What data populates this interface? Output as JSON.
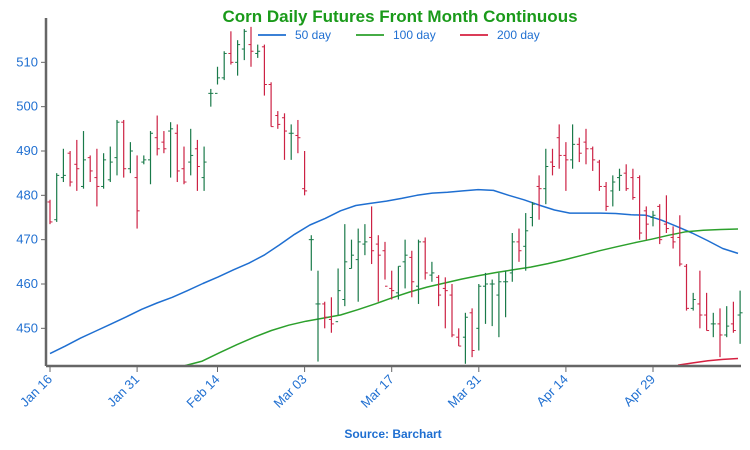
{
  "chart_data": {
    "type": "line",
    "title": "Corn Daily Futures Front Month Continuous",
    "source": "Source: Barchart",
    "xlabel": "",
    "ylabel": "",
    "x_tick_labels": [
      "Jan 16",
      "Jan 31",
      "Feb 14",
      "Mar 03",
      "Mar 17",
      "Mar 31",
      "Apr 14",
      "Apr 29"
    ],
    "y_ticks": [
      450,
      460,
      470,
      480,
      490,
      500,
      510
    ],
    "ylim": [
      441.5,
      520
    ],
    "grid": false,
    "legend_position": "top",
    "series": [
      {
        "name": "50 day",
        "color": "#1f6fd1",
        "values": [
          444.3,
          446.0,
          447.8,
          449.4,
          451.0,
          452.6,
          454.3,
          455.7,
          457.0,
          458.5,
          460.1,
          461.6,
          463.2,
          464.7,
          466.5,
          468.8,
          471.2,
          473.3,
          474.8,
          476.5,
          477.7,
          478.2,
          478.7,
          479.3,
          480.0,
          480.5,
          480.7,
          481.0,
          481.3,
          481.1,
          480.0,
          479.0,
          477.8,
          476.7,
          476.0,
          476.0,
          476.0,
          475.9,
          475.6,
          475.5,
          474.4,
          473.0,
          471.5,
          469.8,
          468.0,
          466.9
        ]
      },
      {
        "name": "100 day",
        "color": "#2ca02c",
        "values": [
          441.6,
          442.6,
          444.5,
          446.3,
          448.0,
          449.5,
          450.7,
          451.6,
          452.3,
          453.0,
          454.2,
          455.5,
          456.9,
          458.2,
          459.3,
          460.2,
          461.1,
          461.9,
          462.6,
          463.2,
          463.8,
          464.6,
          465.5,
          466.5,
          467.5,
          468.4,
          469.3,
          470.1,
          471.0,
          471.8,
          472.1,
          472.3,
          472.4
        ]
      },
      {
        "name": "200 day",
        "color": "#d62040",
        "values": [
          441.7,
          442.2,
          442.7,
          443.0,
          443.2
        ]
      }
    ],
    "ohlc": {
      "up_color": "#1a7a4a",
      "down_color": "#cc2244",
      "bars": [
        [
          478.5,
          479.0,
          473.5,
          474.0
        ],
        [
          474.5,
          485.0,
          474.0,
          484.5
        ],
        [
          484.0,
          490.5,
          483.0,
          484.5
        ],
        [
          489.5,
          490.0,
          482.0,
          483.0
        ],
        [
          487.0,
          492.5,
          481.0,
          486.0
        ],
        [
          482.0,
          494.5,
          481.5,
          488.0
        ],
        [
          488.5,
          489.0,
          483.0,
          485.5
        ],
        [
          484.0,
          490.5,
          477.5,
          482.0
        ],
        [
          482.0,
          489.5,
          481.5,
          488.0
        ],
        [
          483.5,
          491.0,
          483.0,
          487.5
        ],
        [
          488.5,
          497.0,
          484.5,
          496.5
        ],
        [
          496.5,
          497.0,
          484.0,
          486.0
        ],
        [
          486.0,
          492.0,
          485.0,
          490.0
        ],
        [
          484.0,
          489.0,
          472.5,
          476.5
        ],
        [
          487.5,
          489.0,
          487.0,
          488.0
        ],
        [
          488.0,
          494.5,
          482.5,
          494.0
        ],
        [
          493.0,
          498.0,
          489.0,
          490.5
        ],
        [
          492.0,
          494.5,
          489.5,
          490.5
        ],
        [
          494.5,
          496.5,
          484.0,
          495.0
        ],
        [
          494.0,
          496.0,
          483.0,
          485.5
        ],
        [
          486.0,
          491.0,
          482.5,
          483.0
        ],
        [
          487.5,
          495.0,
          484.5,
          489.0
        ],
        [
          490.5,
          492.5,
          481.0,
          486.5
        ],
        [
          484.0,
          491.0,
          481.0,
          487.5
        ],
        [
          503.0,
          504.0,
          500.0,
          503.0
        ],
        [
          503.0,
          509.0,
          505.0,
          506.5
        ],
        [
          506.5,
          512.5,
          506.0,
          512.0
        ],
        [
          512.0,
          517.0,
          509.5,
          510.0
        ],
        [
          510.0,
          515.0,
          507.0,
          514.0
        ],
        [
          513.0,
          517.5,
          510.5,
          517.0
        ],
        [
          514.0,
          518.0,
          509.0,
          512.5
        ],
        [
          512.0,
          514.0,
          511.0,
          512.5
        ],
        [
          513.5,
          514.0,
          502.5,
          505.0
        ],
        [
          505.0,
          505.5,
          495.5,
          495.5
        ],
        [
          498.0,
          499.0,
          495.0,
          496.0
        ],
        [
          497.5,
          498.5,
          488.0,
          494.5
        ],
        [
          494.0,
          496.0,
          488.0,
          494.0
        ],
        [
          493.5,
          497.0,
          489.5,
          493.0
        ],
        [
          481.5,
          490.0,
          480.0,
          481.0
        ],
        [
          470.0,
          471.0,
          463.0,
          470.0
        ],
        [
          455.5,
          463.0,
          442.5,
          455.5
        ],
        [
          455.5,
          456.0,
          450.0,
          452.5
        ],
        [
          452.0,
          457.0,
          449.0,
          451.0
        ],
        [
          451.5,
          463.5,
          453.0,
          458.5
        ],
        [
          456.5,
          473.5,
          455.0,
          465.0
        ],
        [
          463.5,
          470.0,
          463.5,
          466.5
        ],
        [
          465.5,
          472.5,
          456.0,
          469.5
        ],
        [
          469.0,
          473.5,
          466.5,
          469.5
        ],
        [
          470.5,
          477.5,
          464.5,
          467.5
        ],
        [
          469.0,
          471.0,
          456.0,
          466.5
        ],
        [
          467.5,
          469.5,
          461.0,
          459.5
        ],
        [
          459.0,
          463.0,
          456.5,
          458.5
        ],
        [
          458.0,
          464.0,
          456.5,
          464.0
        ],
        [
          465.0,
          470.0,
          459.0,
          466.5
        ],
        [
          466.0,
          467.5,
          457.0,
          460.5
        ],
        [
          459.5,
          470.0,
          455.5,
          469.5
        ],
        [
          469.5,
          470.5,
          461.0,
          462.5
        ],
        [
          462.0,
          465.0,
          460.5,
          462.5
        ],
        [
          461.5,
          462.0,
          455.0,
          457.5
        ],
        [
          459.0,
          461.5,
          450.0,
          458.5
        ],
        [
          457.5,
          460.0,
          448.0,
          448.5
        ],
        [
          448.0,
          450.0,
          446.0,
          446.0
        ],
        [
          448.0,
          453.5,
          442.0,
          452.5
        ],
        [
          453.5,
          454.5,
          443.5,
          445.0
        ],
        [
          450.0,
          460.0,
          445.0,
          459.5
        ],
        [
          459.5,
          462.5,
          451.0,
          460.0
        ],
        [
          460.0,
          461.0,
          450.5,
          460.0
        ],
        [
          457.5,
          462.5,
          448.0,
          460.5
        ],
        [
          460.5,
          463.0,
          452.5,
          460.5
        ],
        [
          462.5,
          471.5,
          460.5,
          469.5
        ],
        [
          469.5,
          472.5,
          465.0,
          467.5
        ],
        [
          468.5,
          476.0,
          463.0,
          472.0
        ],
        [
          475.0,
          478.5,
          473.0,
          478.0
        ],
        [
          482.0,
          484.5,
          474.5,
          481.5
        ],
        [
          481.5,
          490.5,
          478.0,
          486.5
        ],
        [
          487.5,
          490.5,
          484.5,
          486.5
        ],
        [
          493.0,
          496.0,
          486.0,
          489.0
        ],
        [
          489.0,
          492.0,
          481.0,
          488.0
        ],
        [
          488.0,
          496.0,
          486.0,
          491.5
        ],
        [
          491.5,
          493.0,
          487.5,
          489.5
        ],
        [
          492.0,
          495.0,
          487.0,
          490.5
        ],
        [
          490.5,
          491.0,
          485.5,
          488.0
        ],
        [
          487.5,
          488.0,
          481.0,
          482.0
        ],
        [
          482.0,
          483.0,
          476.5,
          477.5
        ],
        [
          481.0,
          484.5,
          477.5,
          483.0
        ],
        [
          484.0,
          486.0,
          481.0,
          484.5
        ],
        [
          485.0,
          487.0,
          481.0,
          481.5
        ],
        [
          484.0,
          486.0,
          479.0,
          479.5
        ],
        [
          484.0,
          484.5,
          470.0,
          471.5
        ],
        [
          476.5,
          477.5,
          470.0,
          473.5
        ],
        [
          475.0,
          476.5,
          473.0,
          475.5
        ],
        [
          477.5,
          478.0,
          469.0,
          470.0
        ],
        [
          473.5,
          480.0,
          471.5,
          472.5
        ],
        [
          470.5,
          473.0,
          468.0,
          469.5
        ],
        [
          470.5,
          475.5,
          464.0,
          464.5
        ],
        [
          464.0,
          464.5,
          454.0,
          454.5
        ],
        [
          454.5,
          458.0,
          454.0,
          456.5
        ],
        [
          455.5,
          463.0,
          450.0,
          453.0
        ],
        [
          453.0,
          458.0,
          449.5,
          449.5
        ],
        [
          451.0,
          453.5,
          448.0,
          451.0
        ],
        [
          451.0,
          454.5,
          443.5,
          448.5
        ],
        [
          448.5,
          455.0,
          448.0,
          450.5
        ],
        [
          451.0,
          456.0,
          449.0,
          449.5
        ],
        [
          453.0,
          458.5,
          446.5,
          453.5
        ]
      ]
    }
  }
}
